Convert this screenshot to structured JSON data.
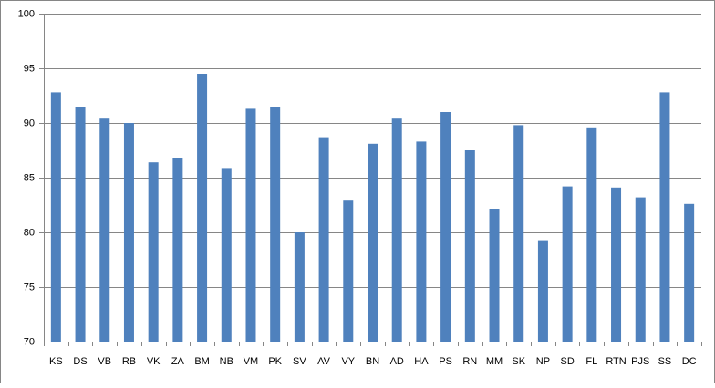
{
  "chart_data": {
    "type": "bar",
    "categories": [
      "KS",
      "DS",
      "VB",
      "RB",
      "VK",
      "ZA",
      "BM",
      "NB",
      "VM",
      "PK",
      "SV",
      "AV",
      "VY",
      "BN",
      "AD",
      "HA",
      "PS",
      "RN",
      "MM",
      "SK",
      "NP",
      "SD",
      "FL",
      "RTN",
      "PJS",
      "SS",
      "DC"
    ],
    "values": [
      92.8,
      91.5,
      90.4,
      90,
      86.4,
      86.8,
      94.5,
      85.8,
      91.3,
      91.5,
      80,
      88.7,
      82.9,
      88.1,
      90.4,
      88.3,
      91,
      87.5,
      82.1,
      89.8,
      79.2,
      84.2,
      89.6,
      84.1,
      83.2,
      92.8,
      82.6
    ],
    "color": "#4f81bd",
    "ylim": [
      70,
      100
    ],
    "yticks": [
      70,
      75,
      80,
      85,
      90,
      95,
      100
    ],
    "grid": true
  }
}
